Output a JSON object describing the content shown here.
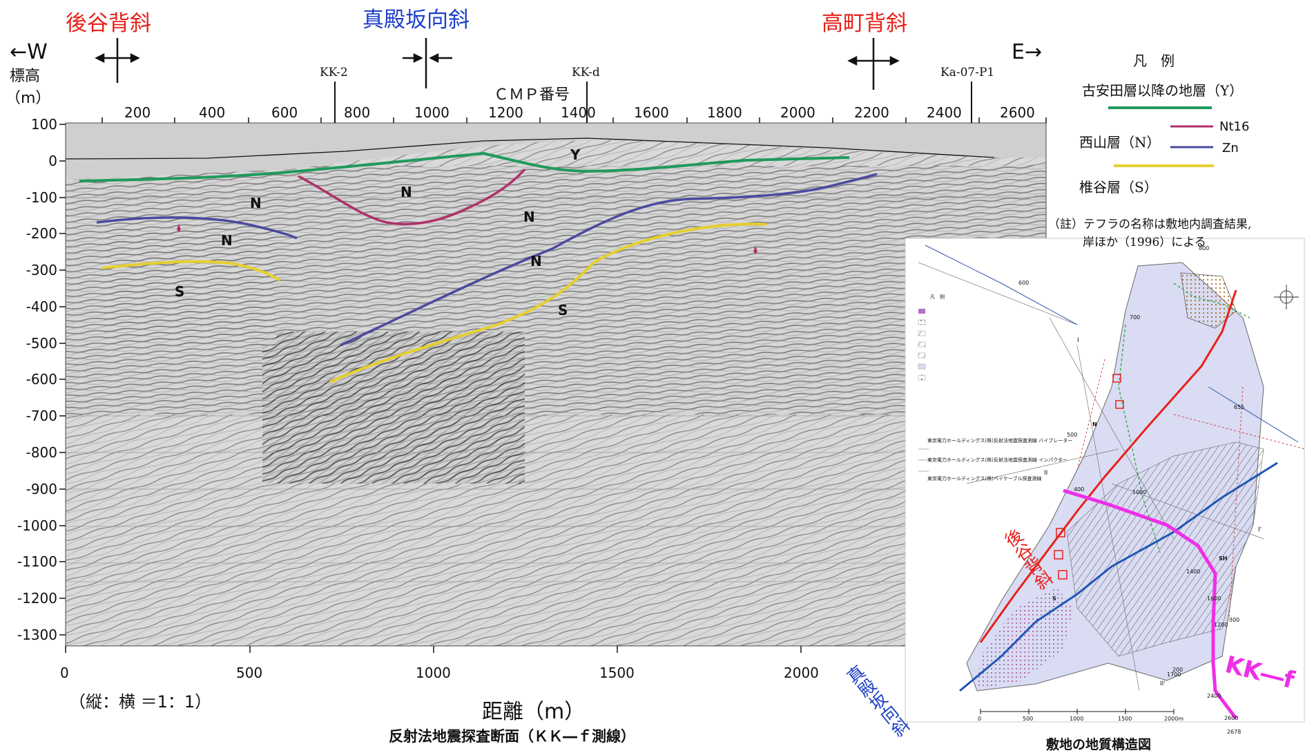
{
  "structures": {
    "left_anticline": "後谷背斜",
    "center_syncline": "真殿坂向斜",
    "right_anticline": "高町背斜"
  },
  "direction": {
    "west": "←W",
    "east": "E→"
  },
  "y_axis_title_1": "標高",
  "y_axis_title_2": "（m）",
  "cmp_title": "ＣＭＰ番号",
  "cmp_ticks": [
    "200",
    "400",
    "600",
    "800",
    "1000",
    "1200",
    "1400",
    "1600",
    "1800",
    "2000",
    "2200",
    "2400",
    "2600"
  ],
  "wells": [
    "KK-2",
    "KK-d",
    "Ka-07-P1"
  ],
  "elev_ticks": [
    "100",
    "0",
    "-100",
    "-200",
    "-300",
    "-400",
    "-500",
    "-600",
    "-700",
    "-800",
    "-900",
    "-1000",
    "-1100",
    "-1200",
    "-1300"
  ],
  "dist_ticks": [
    "0",
    "500",
    "1000",
    "1500",
    "2000"
  ],
  "scale_note": "（縦：横 ＝1：1）",
  "x_axis_title": "距離（m）",
  "section_caption": "反射法地震探査断面（ＫＫ―ｆ測線）",
  "layer_labels": {
    "Y": "Y",
    "N": "N",
    "S": "S"
  },
  "legend": {
    "title": "凡　例",
    "y_label": "古安田層以降の地層（Y）",
    "n_label": "西山層（N）",
    "nt16": "Nt16",
    "zn": "Zn",
    "s_label": "椎谷層（S）",
    "note_1": "（註）テフラの名称は敷地内調査結果,",
    "note_2": "岸ほか（1996）による"
  },
  "colors": {
    "y_line": "#1f9a5c",
    "nt16_line": "#b0306a",
    "zn_line": "#4a4aa0",
    "s_line": "#e6cf2e",
    "red_text": "#e8201a",
    "blue_text": "#1d3fc7",
    "magenta_line": "#ee2ee8"
  },
  "inset": {
    "caption": "敷地の地質構造図",
    "kk_label": "KK―f",
    "red_vertical": "後谷背斜",
    "blue_vertical": "真殿坂向斜",
    "legend_title": "凡　例",
    "survey_1": "東京電力ホールディングス(株)反射法地震探査測線 バイブレーター",
    "survey_2": "東京電力ホールディングス(株)反射法地震探査測線 インパクター",
    "survey_3": "東京電力ホールディングス(株)ベイケーブル探査測線",
    "scale_ticks": [
      "0",
      "500",
      "1000",
      "1500",
      "2000m"
    ],
    "sample_labels": [
      "800",
      "600",
      "700",
      "1000",
      "500",
      "400",
      "300",
      "200",
      "655",
      "1600",
      "1400",
      "1200",
      "2400",
      "2600",
      "2678",
      "1700",
      "SH",
      "S",
      "N",
      "I",
      "I'",
      "II",
      "II'",
      "N",
      "KK-f"
    ]
  }
}
